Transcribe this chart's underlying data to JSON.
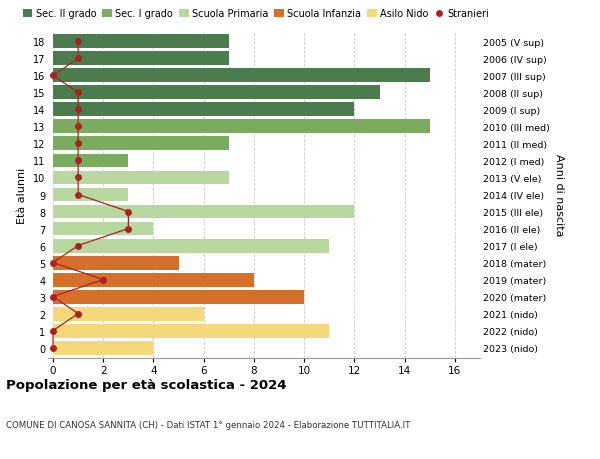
{
  "ages": [
    18,
    17,
    16,
    15,
    14,
    13,
    12,
    11,
    10,
    9,
    8,
    7,
    6,
    5,
    4,
    3,
    2,
    1,
    0
  ],
  "years_labels": [
    "2005 (V sup)",
    "2006 (IV sup)",
    "2007 (III sup)",
    "2008 (II sup)",
    "2009 (I sup)",
    "2010 (III med)",
    "2011 (II med)",
    "2012 (I med)",
    "2013 (V ele)",
    "2014 (IV ele)",
    "2015 (III ele)",
    "2016 (II ele)",
    "2017 (I ele)",
    "2018 (mater)",
    "2019 (mater)",
    "2020 (mater)",
    "2021 (nido)",
    "2022 (nido)",
    "2023 (nido)"
  ],
  "bar_values": [
    7,
    7,
    15,
    13,
    12,
    15,
    7,
    3,
    7,
    3,
    12,
    4,
    11,
    5,
    8,
    10,
    6,
    11,
    4
  ],
  "bar_colors": [
    "#4a7c4e",
    "#4a7c4e",
    "#4a7c4e",
    "#4a7c4e",
    "#4a7c4e",
    "#7aab5e",
    "#7aab5e",
    "#7aab5e",
    "#b8d8a0",
    "#b8d8a0",
    "#b8d8a0",
    "#b8d8a0",
    "#b8d8a0",
    "#d4702a",
    "#d4702a",
    "#d4702a",
    "#f5d87a",
    "#f5d87a",
    "#f5d87a"
  ],
  "stranieri_x": [
    1,
    1,
    0,
    1,
    1,
    1,
    1,
    1,
    1,
    1,
    3,
    3,
    1,
    0,
    2,
    0,
    1,
    0,
    0
  ],
  "legend_labels": [
    "Sec. II grado",
    "Sec. I grado",
    "Scuola Primaria",
    "Scuola Infanzia",
    "Asilo Nido",
    "Stranieri"
  ],
  "legend_colors": [
    "#4a7c4e",
    "#7aab5e",
    "#b8d8a0",
    "#d4702a",
    "#f5d87a",
    "#aa2222"
  ],
  "title": "Popolazione per età scolastica - 2024",
  "subtitle": "COMUNE DI CANOSA SANNITA (CH) - Dati ISTAT 1° gennaio 2024 - Elaborazione TUTTITALIA.IT",
  "ylabel": "Età alunni",
  "right_label": "Anni di nascita",
  "xlabel_values": [
    0,
    2,
    4,
    6,
    8,
    10,
    12,
    14,
    16
  ],
  "background_color": "#ffffff",
  "grid_color": "#cccccc",
  "stranieri_color": "#aa2222"
}
